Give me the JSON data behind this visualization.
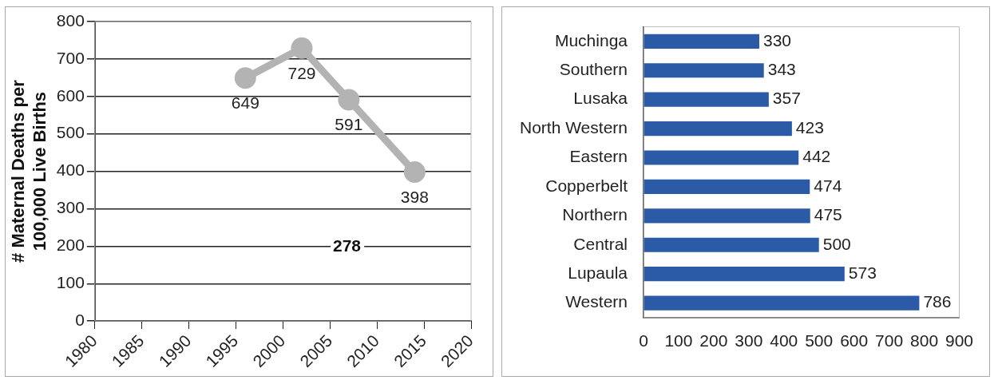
{
  "chart_data": [
    {
      "type": "line",
      "ylabel": "# Maternal Deaths per 100,000 Live Births",
      "x": [
        1996,
        2002,
        2007,
        2014
      ],
      "values": [
        649,
        729,
        591,
        398
      ],
      "color": "#b3b3b3",
      "xlim": [
        1980,
        2020
      ],
      "xticks": [
        1980,
        1985,
        1990,
        1995,
        2000,
        2005,
        2010,
        2015,
        2020
      ],
      "ylim": [
        0,
        800
      ],
      "yticks": [
        0,
        100,
        200,
        300,
        400,
        500,
        600,
        700,
        800
      ],
      "grid": "y",
      "data_labels": true,
      "marker": "circle",
      "line_style": "solid",
      "legend": false,
      "annotations": [
        "278"
      ]
    },
    {
      "type": "bar",
      "orientation": "horizontal",
      "categories": [
        "Muchinga",
        "Southern",
        "Lusaka",
        "North Western",
        "Eastern",
        "Copperbelt",
        "Northern",
        "Central",
        "Lupaula",
        "Western"
      ],
      "values": [
        330,
        343,
        357,
        423,
        442,
        474,
        475,
        500,
        573,
        786
      ],
      "color": "#2b5aa6",
      "xlim": [
        0,
        900
      ],
      "xticks": [
        0,
        100,
        200,
        300,
        400,
        500,
        600,
        700,
        800,
        900
      ],
      "grid": false,
      "data_labels": true,
      "legend": false
    }
  ]
}
